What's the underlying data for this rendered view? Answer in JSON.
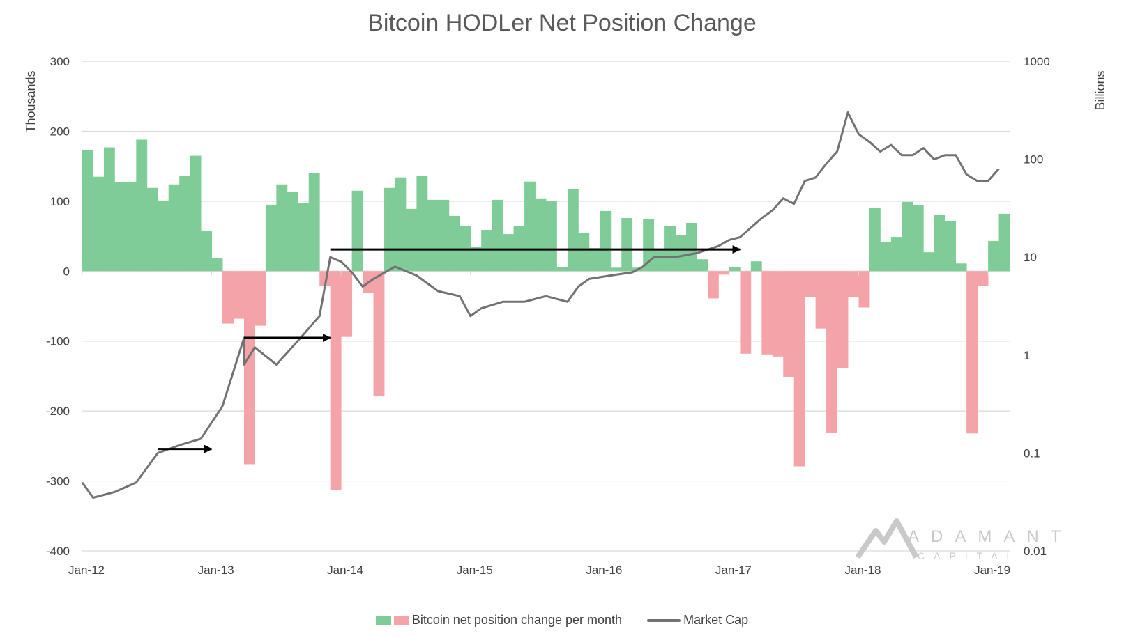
{
  "title": "Bitcoin HODLer Net Position Change",
  "legend": {
    "bars": "Bitcoin net position change per month",
    "line": "Market Cap"
  },
  "colors": {
    "positive": "#7fcc98",
    "negative": "#f4a3a8",
    "line": "#727272",
    "grid": "#d9d9d9",
    "arrow": "#000000",
    "logo": "#c9c9c9"
  },
  "logo": {
    "name": "ADAMANT",
    "sub": "CAPITAL",
    "icon": "mountain-logo-icon"
  },
  "chart_data": {
    "type": "bar+line",
    "title": "Bitcoin HODLer Net Position Change",
    "xlabel": "",
    "ylabel_left": "Thousands",
    "ylabel_right": "Billions",
    "ylim_left": [
      -400,
      300
    ],
    "left_ticks": [
      "300",
      "200",
      "100",
      "0",
      "-100",
      "-200",
      "-300",
      "-400"
    ],
    "right_scale": "log",
    "ylim_right": [
      0.01,
      1000
    ],
    "right_ticks": [
      "1000",
      "100",
      "10",
      "1",
      "0.1",
      "0.01"
    ],
    "x_ticks": [
      "Jan-12",
      "Jan-13",
      "Jan-14",
      "Jan-15",
      "Jan-16",
      "Jan-17",
      "Jan-18",
      "Jan-19"
    ],
    "grid": "horizontal",
    "legend_position": "bottom",
    "series": [
      {
        "name": "Bitcoin net position change per month",
        "type": "bar",
        "unit": "thousands BTC",
        "start_month": "Jan-12",
        "values": [
          173,
          135,
          177,
          127,
          127,
          188,
          119,
          101,
          124,
          136,
          165,
          57,
          19,
          -75,
          -68,
          -276,
          -78,
          95,
          124,
          113,
          97,
          140,
          -21,
          -313,
          -94,
          115,
          -31,
          -179,
          119,
          134,
          89,
          136,
          102,
          102,
          79,
          64,
          35,
          59,
          102,
          53,
          64,
          128,
          104,
          100,
          6,
          117,
          55,
          33,
          86,
          5,
          76,
          5,
          74,
          31,
          64,
          52,
          69,
          17,
          -39,
          -5,
          6,
          -118,
          14,
          -119,
          -122,
          -151,
          -279,
          -37,
          -82,
          -231,
          -139,
          -37,
          -52,
          90,
          42,
          49,
          99,
          94,
          27,
          80,
          71,
          11,
          -232,
          -21,
          43,
          82
        ]
      },
      {
        "name": "Market Cap",
        "type": "line",
        "unit": "billions USD",
        "x": [
          "Jan-12",
          "Feb-12",
          "Apr-12",
          "Jun-12",
          "Aug-12",
          "Oct-12",
          "Dec-12",
          "Feb-13",
          "Apr-13",
          "Apr-13",
          "May-13",
          "Jul-13",
          "Sep-13",
          "Nov-13",
          "Dec-13",
          "Jan-14",
          "Feb-14",
          "Mar-14",
          "Apr-14",
          "Jun-14",
          "Aug-14",
          "Oct-14",
          "Dec-14",
          "Jan-15",
          "Feb-15",
          "Apr-15",
          "Jun-15",
          "Aug-15",
          "Oct-15",
          "Nov-15",
          "Dec-15",
          "Feb-16",
          "Apr-16",
          "May-16",
          "Jun-16",
          "Aug-16",
          "Oct-16",
          "Dec-16",
          "Jan-17",
          "Feb-17",
          "Mar-17",
          "Apr-17",
          "May-17",
          "Jun-17",
          "Jul-17",
          "Aug-17",
          "Sep-17",
          "Oct-17",
          "Nov-17",
          "Dec-17",
          "Jan-18",
          "Feb-18",
          "Mar-18",
          "Apr-18",
          "May-18",
          "Jun-18",
          "Jul-18",
          "Aug-18",
          "Sep-18",
          "Oct-18",
          "Nov-18",
          "Dec-18",
          "Jan-19",
          "Feb-19"
        ],
        "values": [
          0.05,
          0.035,
          0.04,
          0.05,
          0.1,
          0.12,
          0.14,
          0.3,
          1.5,
          0.8,
          1.2,
          0.8,
          1.4,
          2.5,
          10,
          9,
          7,
          5,
          6,
          8,
          6.5,
          4.5,
          4,
          2.5,
          3,
          3.5,
          3.5,
          4,
          3.5,
          5,
          6,
          6.5,
          7,
          8,
          10,
          10,
          11,
          13,
          15,
          16,
          20,
          25,
          30,
          40,
          35,
          60,
          65,
          90,
          120,
          300,
          180,
          150,
          120,
          140,
          110,
          110,
          130,
          100,
          110,
          110,
          70,
          60,
          60,
          80
        ]
      }
    ],
    "annotations": [
      {
        "type": "arrow",
        "from": "Aug-12",
        "to": "Dec-12",
        "at": 0.11
      },
      {
        "type": "arrow",
        "from": "Apr-13",
        "to": "Nov-13",
        "at": 1.5
      },
      {
        "type": "arrow",
        "from": "Dec-13",
        "to": "Jan-17",
        "at": 12
      }
    ]
  }
}
